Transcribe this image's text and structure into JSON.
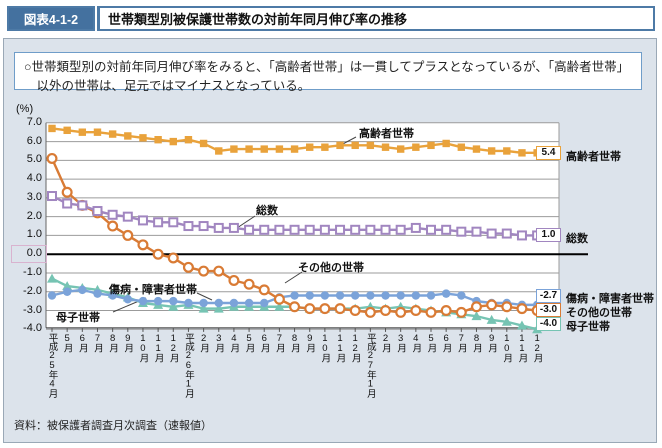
{
  "header": {
    "figure_label": "図表4-1-2",
    "title": "世帯類型別被保護世帯数の対前年同月伸び率の推移"
  },
  "note": {
    "text": "○世帯類型別の対前年同月伸び率をみると、「高齢者世帯」は一貫してプラスとなっているが、「高齢者世帯」以外の世帯は、足元ではマイナスとなっている。"
  },
  "source": "資料：被保護者調査月次調査（速報値）",
  "chart_data": {
    "type": "line",
    "unit_label": "(%)",
    "ylim": [
      -4.0,
      7.0
    ],
    "ytick_step": 1.0,
    "yticks": [
      "7.0",
      "6.0",
      "5.0",
      "4.0",
      "3.0",
      "2.0",
      "1.0",
      "0.0",
      "-1.0",
      "-2.0",
      "-3.0",
      "-4.0"
    ],
    "grid": true,
    "legend_position": "right-edge-labels",
    "categories": [
      "平成25年4月",
      "5月",
      "6月",
      "7月",
      "8月",
      "9月",
      "10月",
      "11月",
      "12月",
      "平成26年1月",
      "2月",
      "3月",
      "4月",
      "5月",
      "6月",
      "7月",
      "8月",
      "9月",
      "10月",
      "11月",
      "12月",
      "平成27年1月",
      "2月",
      "3月",
      "4月",
      "5月",
      "6月",
      "7月",
      "8月",
      "9月",
      "10月",
      "11月",
      "12月"
    ],
    "series": [
      {
        "name": "高齢者世帯",
        "color": "#e9a23b",
        "marker": "square-filled",
        "end_label": "5.4",
        "values": [
          6.7,
          6.6,
          6.5,
          6.5,
          6.4,
          6.3,
          6.2,
          6.1,
          6.0,
          6.1,
          5.9,
          5.5,
          5.6,
          5.6,
          5.6,
          5.6,
          5.6,
          5.7,
          5.7,
          5.8,
          5.8,
          5.8,
          5.7,
          5.6,
          5.7,
          5.8,
          5.9,
          5.7,
          5.6,
          5.5,
          5.5,
          5.4,
          5.4
        ]
      },
      {
        "name": "総数",
        "color": "#a186c0",
        "marker": "square-open",
        "end_label": "1.0",
        "values": [
          3.1,
          2.7,
          2.6,
          2.3,
          2.1,
          2.0,
          1.8,
          1.7,
          1.7,
          1.5,
          1.5,
          1.4,
          1.4,
          1.3,
          1.3,
          1.3,
          1.3,
          1.3,
          1.3,
          1.3,
          1.3,
          1.3,
          1.3,
          1.3,
          1.4,
          1.3,
          1.3,
          1.2,
          1.2,
          1.1,
          1.1,
          1.0,
          1.0
        ]
      },
      {
        "name": "傷病・障害者世帯",
        "color": "#7ba3d9",
        "marker": "circle-filled",
        "end_label": "-2.7",
        "values": [
          -2.2,
          -2.0,
          -1.9,
          -2.1,
          -2.2,
          -2.4,
          -2.5,
          -2.5,
          -2.5,
          -2.6,
          -2.6,
          -2.6,
          -2.6,
          -2.6,
          -2.6,
          -2.3,
          -2.2,
          -2.2,
          -2.2,
          -2.2,
          -2.2,
          -2.2,
          -2.2,
          -2.2,
          -2.2,
          -2.2,
          -2.1,
          -2.2,
          -2.5,
          -2.6,
          -2.6,
          -2.7,
          -2.7
        ]
      },
      {
        "name": "その他の世帯",
        "color": "#d97b35",
        "marker": "circle-open",
        "end_label": "-3.0",
        "values": [
          5.1,
          3.3,
          2.6,
          2.2,
          1.5,
          1.0,
          0.5,
          0.0,
          -0.2,
          -0.7,
          -0.9,
          -0.9,
          -1.4,
          -1.6,
          -1.9,
          -2.4,
          -2.8,
          -2.9,
          -2.9,
          -2.9,
          -3.0,
          -3.1,
          -3.0,
          -3.1,
          -3.0,
          -3.1,
          -3.0,
          -3.1,
          -2.8,
          -2.7,
          -2.8,
          -2.9,
          -3.0
        ]
      },
      {
        "name": "母子世帯",
        "color": "#76c4b3",
        "marker": "triangle-filled",
        "end_label": "-4.0",
        "values": [
          -1.3,
          -1.7,
          -1.8,
          -1.9,
          -2.1,
          -2.3,
          -2.6,
          -2.7,
          -2.8,
          -2.7,
          -2.9,
          -2.9,
          -2.8,
          -2.8,
          -2.8,
          -2.8,
          -2.8,
          -2.9,
          -2.9,
          -2.9,
          -2.9,
          -2.8,
          -2.9,
          -2.8,
          -2.9,
          -3.0,
          -3.1,
          -3.2,
          -3.3,
          -3.5,
          -3.6,
          -3.8,
          -4.0
        ]
      }
    ]
  }
}
